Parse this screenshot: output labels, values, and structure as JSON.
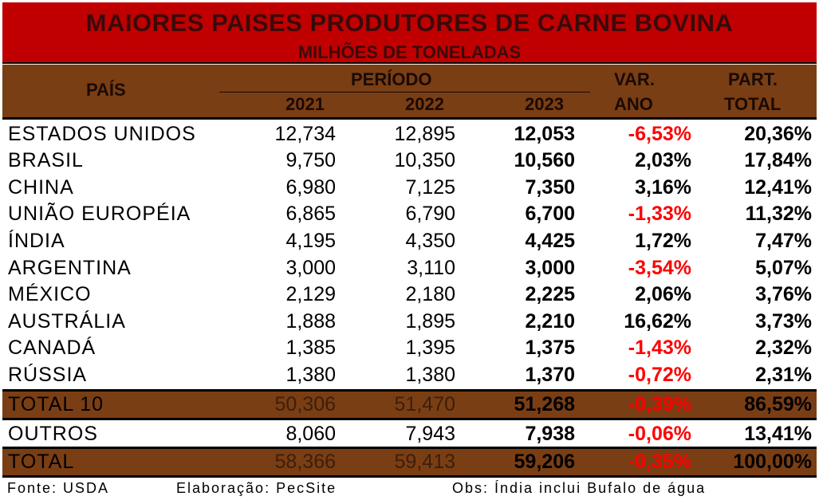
{
  "title": "MAIORES PAISES PRODUTORES DE CARNE BOVINA",
  "subtitle": "MILHÕES DE TONELADAS",
  "headers": {
    "pais": "PAÍS",
    "periodo": "PERÍODO",
    "y2021": "2021",
    "y2022": "2022",
    "y2023": "2023",
    "var_top": "VAR.",
    "var_bottom": "ANO",
    "part_top": "PART.",
    "part_bottom": "TOTAL"
  },
  "chart_data": {
    "type": "table",
    "title": "MAIORES PAISES PRODUTORES DE CARNE BOVINA",
    "subtitle": "MILHÕES DE TONELADAS",
    "columns": [
      "PAÍS",
      "2021",
      "2022",
      "2023",
      "VAR. ANO",
      "PART. TOTAL"
    ],
    "rows": [
      {
        "pais": "ESTADOS UNIDOS",
        "y2021": "12,734",
        "y2022": "12,895",
        "y2023": "12,053",
        "var": "-6,53%",
        "part": "20,36%"
      },
      {
        "pais": "BRASIL",
        "y2021": "9,750",
        "y2022": "10,350",
        "y2023": "10,560",
        "var": "2,03%",
        "part": "17,84%"
      },
      {
        "pais": "CHINA",
        "y2021": "6,980",
        "y2022": "7,125",
        "y2023": "7,350",
        "var": "3,16%",
        "part": "12,41%"
      },
      {
        "pais": "UNIÃO EUROPÉIA",
        "y2021": "6,865",
        "y2022": "6,790",
        "y2023": "6,700",
        "var": "-1,33%",
        "part": "11,32%"
      },
      {
        "pais": "ÍNDIA",
        "y2021": "4,195",
        "y2022": "4,350",
        "y2023": "4,425",
        "var": "1,72%",
        "part": "7,47%"
      },
      {
        "pais": "ARGENTINA",
        "y2021": "3,000",
        "y2022": "3,110",
        "y2023": "3,000",
        "var": "-3,54%",
        "part": "5,07%"
      },
      {
        "pais": "MÉXICO",
        "y2021": "2,129",
        "y2022": "2,180",
        "y2023": "2,225",
        "var": "2,06%",
        "part": "3,76%"
      },
      {
        "pais": "AUSTRÁLIA",
        "y2021": "1,888",
        "y2022": "1,895",
        "y2023": "2,210",
        "var": "16,62%",
        "part": "3,73%"
      },
      {
        "pais": "CANADÁ",
        "y2021": "1,385",
        "y2022": "1,395",
        "y2023": "1,375",
        "var": "-1,43%",
        "part": "2,32%"
      },
      {
        "pais": "RÚSSIA",
        "y2021": "1,380",
        "y2022": "1,380",
        "y2023": "1,370",
        "var": "-0,72%",
        "part": "2,31%"
      }
    ],
    "total10": {
      "pais": "TOTAL 10",
      "y2021": "50,306",
      "y2022": "51,470",
      "y2023": "51,268",
      "var": "-0,39%",
      "part": "86,59%"
    },
    "outros": {
      "pais": "OUTROS",
      "y2021": "8,060",
      "y2022": "7,943",
      "y2023": "7,938",
      "var": "-0,06%",
      "part": "13,41%"
    },
    "total": {
      "pais": "TOTAL",
      "y2021": "58,366",
      "y2022": "59,413",
      "y2023": "59,206",
      "var": "-0,35%",
      "part": "100,00%"
    }
  },
  "colors": {
    "title_band": "#c00000",
    "header_band": "#7a3e14",
    "negative": "#ff0000"
  },
  "footer": {
    "fonte": "Fonte: USDA",
    "elaboracao": "Elaboração: PecSite",
    "obs": "Obs: Índia inclui Bufalo de água"
  }
}
